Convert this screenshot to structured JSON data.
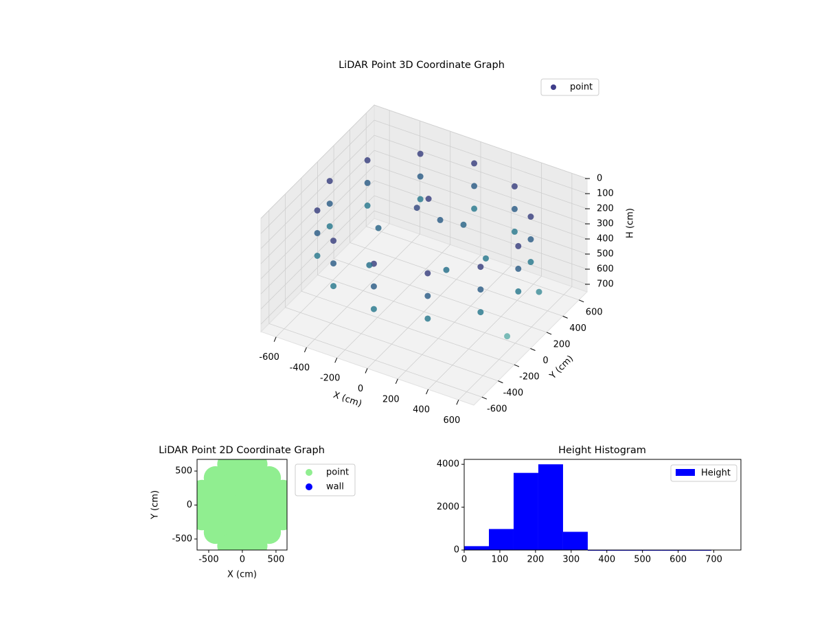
{
  "chart_data": [
    {
      "type": "scatter3d",
      "title": "LiDAR Point 3D Coordinate Graph",
      "xlabel": "X (cm)",
      "ylabel": "Y (cm)",
      "zlabel": "H (cm)",
      "xlim": [
        -700,
        700
      ],
      "ylim": [
        -700,
        700
      ],
      "zlim": [
        0,
        750
      ],
      "z_inverted": true,
      "xticks": [
        -600,
        -400,
        -200,
        0,
        200,
        400,
        600
      ],
      "yticks": [
        -600,
        -400,
        -200,
        0,
        200,
        400,
        600
      ],
      "zticks": [
        0,
        100,
        200,
        300,
        400,
        500,
        600,
        700
      ],
      "grid": true,
      "legend": "upper right",
      "colormap": [
        "#46327e",
        "#2a788e",
        "#7ac6b8"
      ],
      "series": [
        {
          "name": "point",
          "color": "#3f3d8a",
          "x": [
            620,
            537,
            310,
            0,
            -310,
            -537,
            -620,
            -537,
            -310,
            0,
            310,
            537,
            620,
            537,
            310,
            0,
            -310,
            -537,
            -620,
            -537,
            -310,
            0,
            310,
            537,
            620,
            537,
            310,
            0,
            -310,
            -537,
            -620,
            -537,
            -310,
            0,
            310,
            537,
            -100,
            0,
            -300,
            200,
            100,
            -200,
            300,
            -50,
            650,
            600
          ],
          "y": [
            0,
            310,
            537,
            620,
            537,
            310,
            0,
            -310,
            -537,
            -620,
            -537,
            -310,
            0,
            310,
            537,
            620,
            537,
            310,
            0,
            -310,
            -537,
            -620,
            -537,
            -310,
            0,
            310,
            537,
            620,
            537,
            310,
            0,
            -310,
            -537,
            -620,
            -537,
            -310,
            100,
            200,
            0,
            -100,
            300,
            -300,
            200,
            150,
            200,
            -100
          ],
          "z": [
            100,
            100,
            100,
            100,
            100,
            100,
            100,
            100,
            100,
            100,
            100,
            100,
            250,
            250,
            250,
            250,
            250,
            250,
            250,
            250,
            250,
            250,
            250,
            250,
            400,
            400,
            400,
            400,
            400,
            400,
            400,
            400,
            400,
            400,
            400,
            400,
            150,
            250,
            300,
            350,
            300,
            350,
            400,
            100,
            500,
            650
          ]
        }
      ]
    },
    {
      "type": "scatter",
      "title": "LiDAR Point 2D Coordinate Graph",
      "xlabel": "X (cm)",
      "ylabel": "Y (cm)",
      "xlim": [
        -673,
        664
      ],
      "ylim": [
        -662,
        672
      ],
      "xticks": [
        -500,
        0,
        500
      ],
      "yticks": [
        -500,
        0,
        500
      ],
      "legend": "outside right",
      "series": [
        {
          "name": "point",
          "color": "#90ee90",
          "x": [
            -200,
            0,
            200,
            -400,
            -200,
            0,
            200,
            400,
            -600,
            -400,
            -200,
            0,
            200,
            400,
            600,
            -600,
            -400,
            -200,
            0,
            200,
            400,
            600,
            -600,
            -400,
            -200,
            0,
            200,
            400,
            600,
            -400,
            -200,
            0,
            200,
            400,
            -200,
            0,
            200
          ],
          "y": [
            600,
            600,
            600,
            400,
            400,
            400,
            400,
            400,
            200,
            200,
            200,
            200,
            200,
            200,
            200,
            0,
            0,
            0,
            0,
            0,
            0,
            0,
            -200,
            -200,
            -200,
            -200,
            -200,
            -200,
            -200,
            -400,
            -400,
            -400,
            -400,
            -400,
            -600,
            -600,
            -600
          ]
        },
        {
          "name": "wall",
          "color": "#0000ff",
          "x": [],
          "y": []
        }
      ]
    },
    {
      "type": "histogram",
      "title": "Height Histogram",
      "xlim": [
        0,
        776
      ],
      "ylim": [
        0,
        4230
      ],
      "xticks": [
        0,
        100,
        200,
        300,
        400,
        500,
        600,
        700
      ],
      "yticks": [
        0,
        2000,
        4000
      ],
      "legend": "upper right",
      "bins": [
        0,
        69.3,
        138.6,
        207.9,
        277.2,
        346.5,
        415.8,
        485.1,
        554.4,
        623.7,
        693
      ],
      "series": [
        {
          "name": "Height",
          "color": "#0000ff",
          "values": [
            180,
            980,
            3600,
            4000,
            850,
            0,
            0,
            0,
            0,
            0
          ]
        }
      ]
    }
  ]
}
